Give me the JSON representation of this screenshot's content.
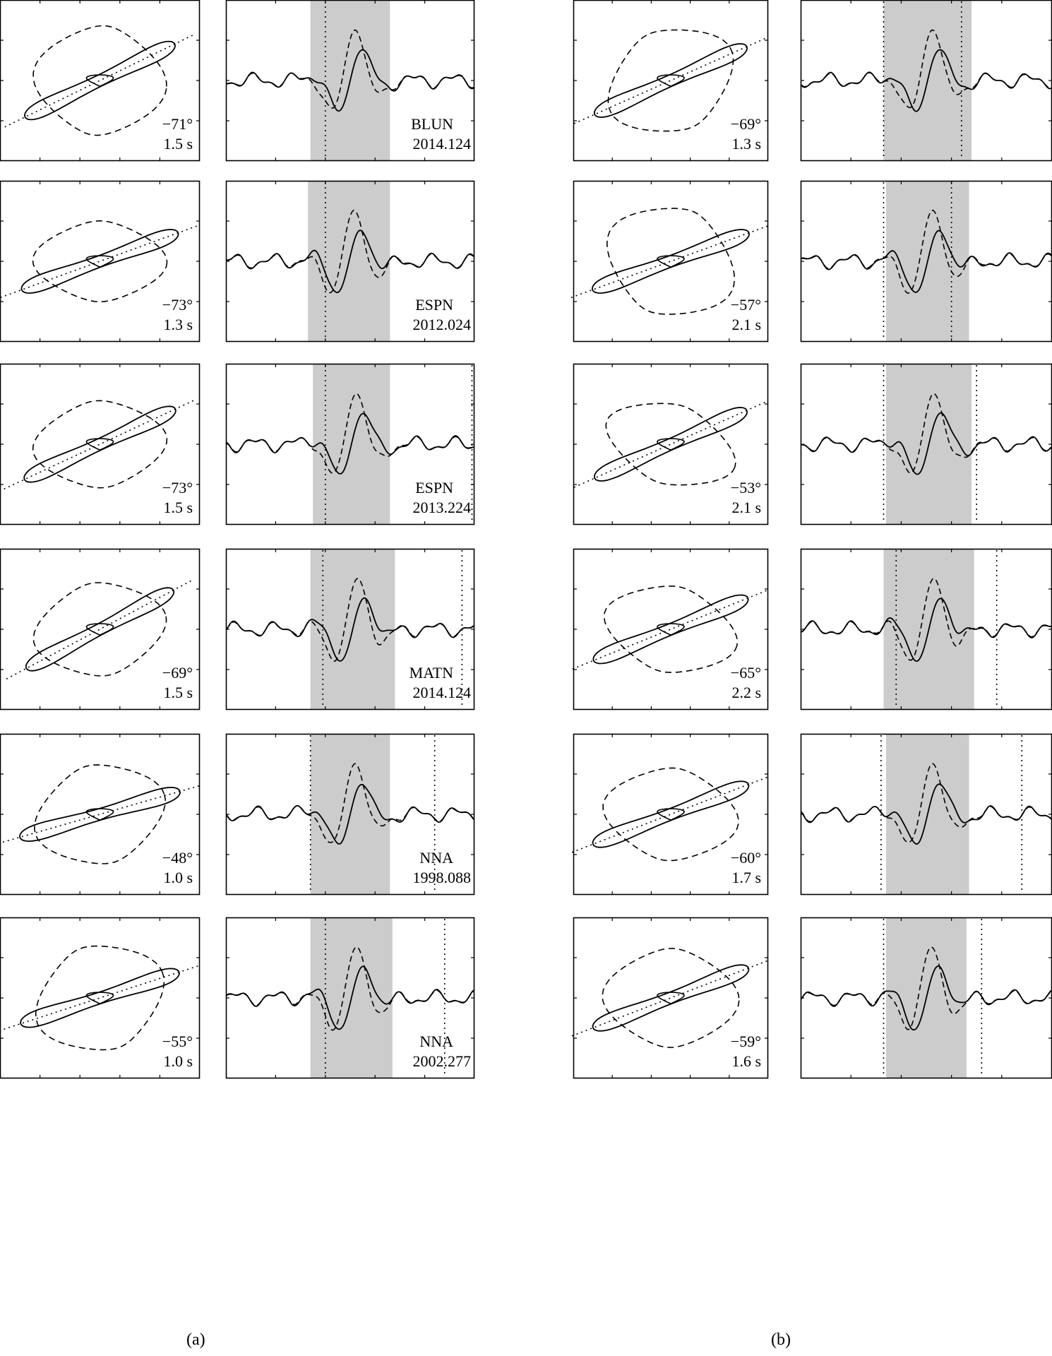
{
  "chart_data": {
    "type": "scatter",
    "panels": [
      {
        "label": "(a)",
        "rows": [
          {
            "angle": "−71°",
            "period": "1.5 s",
            "station": "BLUN",
            "event": "2014.124",
            "dots": [
              0.4
            ]
          },
          {
            "angle": "−73°",
            "period": "1.3 s",
            "station": "ESPN",
            "event": "2012.024",
            "dots": [
              0.4
            ]
          },
          {
            "angle": "−73°",
            "period": "1.5 s",
            "station": "ESPN",
            "event": "2013.224",
            "dots": [
              0.4,
              0.99
            ]
          },
          {
            "angle": "−69°",
            "period": "1.5 s",
            "station": "MATN",
            "event": "2014.124",
            "dots": [
              0.39,
              0.95
            ]
          },
          {
            "angle": "−48°",
            "period": "1.0 s",
            "station": "NNA",
            "event": "1998.088",
            "dots": [
              0.34,
              0.84
            ]
          },
          {
            "angle": "−55°",
            "period": "1.0 s",
            "station": "NNA",
            "event": "2002.277",
            "dots": [
              0.4,
              0.88
            ]
          }
        ]
      },
      {
        "label": "(b)",
        "rows": [
          {
            "angle": "−69°",
            "period": "1.3 s",
            "dots": [
              0.33,
              0.64
            ]
          },
          {
            "angle": "−57°",
            "period": "2.1 s",
            "dots": [
              0.33,
              0.6
            ]
          },
          {
            "angle": "−53°",
            "period": "2.1 s",
            "dots": [
              0.33,
              0.7
            ]
          },
          {
            "angle": "−65°",
            "period": "2.2 s",
            "dots": [
              0.38,
              0.78
            ]
          },
          {
            "angle": "−60°",
            "period": "1.7 s",
            "dots": [
              0.32,
              0.88
            ]
          },
          {
            "angle": "−59°",
            "period": "1.6 s",
            "dots": [
              0.33,
              0.72
            ]
          }
        ]
      }
    ]
  }
}
